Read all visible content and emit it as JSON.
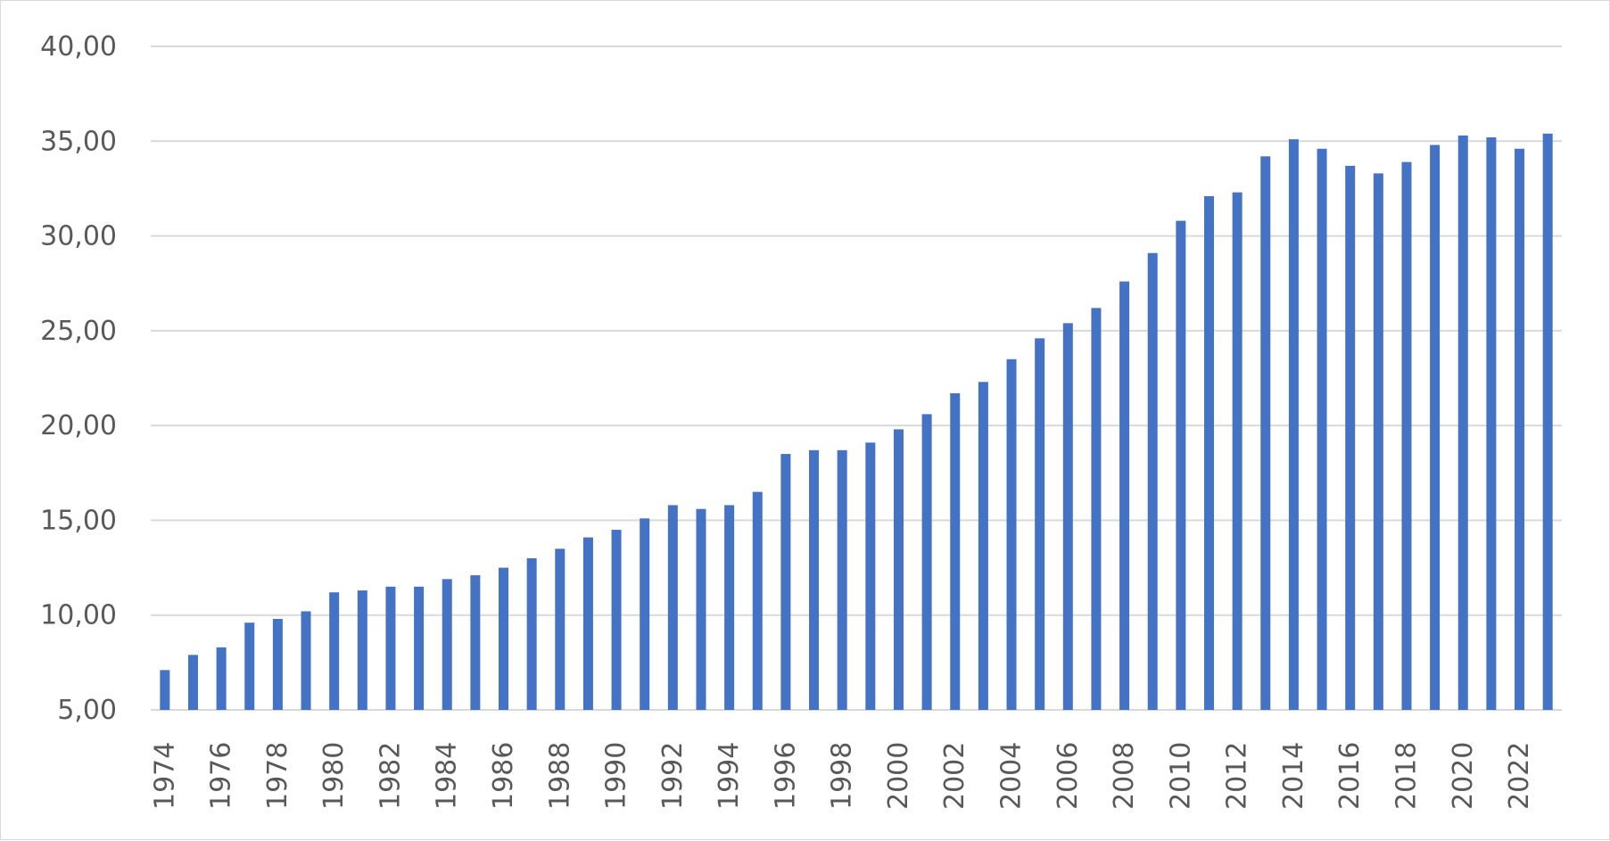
{
  "chart_data": {
    "type": "bar",
    "title": "",
    "xlabel": "",
    "ylabel": "",
    "ylim": [
      5,
      40
    ],
    "yticks": [
      5,
      10,
      15,
      20,
      25,
      30,
      35,
      40
    ],
    "ytick_labels": [
      "5,00",
      "10,00",
      "15,00",
      "20,00",
      "25,00",
      "30,00",
      "35,00",
      "40,00"
    ],
    "grid": true,
    "legend": "none",
    "bar_color": "#4472c4",
    "categories": [
      "1974",
      "1975",
      "1976",
      "1977",
      "1978",
      "1979",
      "1980",
      "1981",
      "1982",
      "1983",
      "1984",
      "1985",
      "1986",
      "1987",
      "1988",
      "1989",
      "1990",
      "1991",
      "1992",
      "1993",
      "1994",
      "1995",
      "1996",
      "1997",
      "1998",
      "1999",
      "2000",
      "2001",
      "2002",
      "2003",
      "2004",
      "2005",
      "2006",
      "2007",
      "2008",
      "2009",
      "2010",
      "2011",
      "2012",
      "2013",
      "2014",
      "2015",
      "2016",
      "2017",
      "2018",
      "2019",
      "2020",
      "2021",
      "2022",
      "2023"
    ],
    "xtick_labels": [
      "1974",
      "1976",
      "1978",
      "1980",
      "1982",
      "1984",
      "1986",
      "1988",
      "1990",
      "1992",
      "1994",
      "1996",
      "1998",
      "2000",
      "2002",
      "2004",
      "2006",
      "2008",
      "2010",
      "2012",
      "2014",
      "2016",
      "2018",
      "2020",
      "2022"
    ],
    "values": [
      7.1,
      7.9,
      8.3,
      9.6,
      9.8,
      10.2,
      11.2,
      11.3,
      11.5,
      11.5,
      11.9,
      12.1,
      12.5,
      13.0,
      13.5,
      14.1,
      14.5,
      15.1,
      15.8,
      15.6,
      15.8,
      16.5,
      18.5,
      18.7,
      18.7,
      19.1,
      19.8,
      20.6,
      21.7,
      22.3,
      23.5,
      24.6,
      25.4,
      26.2,
      27.6,
      29.1,
      30.8,
      32.1,
      32.3,
      34.2,
      35.1,
      34.6,
      33.7,
      33.3,
      33.9,
      34.8,
      35.3,
      35.2,
      34.6,
      35.4
    ]
  }
}
